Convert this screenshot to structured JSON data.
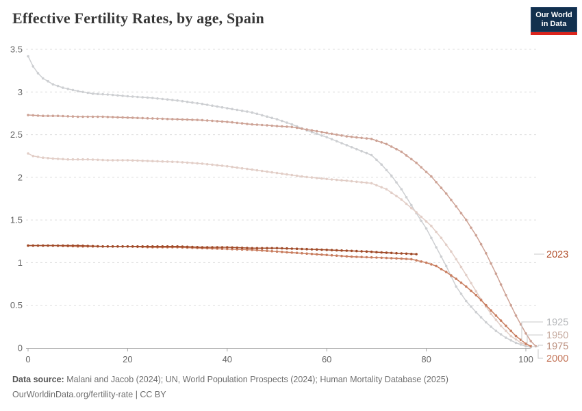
{
  "header": {
    "title": "Effective Fertility Rates, by age, Spain"
  },
  "logo": {
    "line1": "Our World",
    "line2": "in Data",
    "bg_color": "#12304e",
    "accent_color": "#dc241c"
  },
  "footer": {
    "source_label": "Data source:",
    "sources": "Malani and Jacob (2024); UN, World Population Prospects (2024); Human Mortality Database (2025)",
    "citation": "OurWorldinData.org/fertility-rate | CC BY"
  },
  "chart_data": {
    "type": "line",
    "title": "Effective Fertility Rates, by age, Spain",
    "xlabel": "",
    "ylabel": "",
    "xlim": [
      0,
      103
    ],
    "ylim": [
      0,
      3.5
    ],
    "x_ticks": [
      0,
      20,
      40,
      60,
      80,
      100
    ],
    "y_ticks": [
      0,
      0.5,
      1,
      1.5,
      2,
      2.5,
      3,
      3.5
    ],
    "grid": "horizontal-dashed",
    "legend_position": "end-of-line-labels",
    "axis_color": "#a5a5a5",
    "grid_color": "#dcdcdc",
    "tick_label_color": "#666666",
    "connector_color": "#c8c8c8",
    "series": [
      {
        "name": "1925",
        "color": "#cdcfd2",
        "label_color": "#b6b8bb",
        "points": [
          [
            0,
            3.42
          ],
          [
            1,
            3.3
          ],
          [
            2,
            3.22
          ],
          [
            3,
            3.16
          ],
          [
            5,
            3.09
          ],
          [
            7,
            3.05
          ],
          [
            10,
            3.01
          ],
          [
            13,
            2.98
          ],
          [
            16,
            2.97
          ],
          [
            20,
            2.95
          ],
          [
            25,
            2.93
          ],
          [
            30,
            2.9
          ],
          [
            35,
            2.86
          ],
          [
            40,
            2.81
          ],
          [
            45,
            2.76
          ],
          [
            50,
            2.68
          ],
          [
            53,
            2.62
          ],
          [
            56,
            2.55
          ],
          [
            60,
            2.47
          ],
          [
            63,
            2.4
          ],
          [
            66,
            2.33
          ],
          [
            69,
            2.26
          ],
          [
            71,
            2.15
          ],
          [
            73,
            2.02
          ],
          [
            75,
            1.86
          ],
          [
            78,
            1.58
          ],
          [
            80,
            1.4
          ],
          [
            82,
            1.18
          ],
          [
            84,
            0.96
          ],
          [
            86,
            0.72
          ],
          [
            88,
            0.55
          ],
          [
            90,
            0.42
          ],
          [
            92,
            0.3
          ],
          [
            94,
            0.2
          ],
          [
            96,
            0.12
          ],
          [
            98,
            0.06
          ],
          [
            100,
            0.02
          ],
          [
            101,
            0.01
          ]
        ]
      },
      {
        "name": "1950",
        "color": "#e2cec7",
        "label_color": "#c7aca1",
        "points": [
          [
            0,
            2.28
          ],
          [
            1,
            2.25
          ],
          [
            3,
            2.23
          ],
          [
            5,
            2.22
          ],
          [
            8,
            2.21
          ],
          [
            12,
            2.21
          ],
          [
            16,
            2.2
          ],
          [
            20,
            2.2
          ],
          [
            25,
            2.19
          ],
          [
            30,
            2.18
          ],
          [
            35,
            2.16
          ],
          [
            40,
            2.13
          ],
          [
            45,
            2.09
          ],
          [
            50,
            2.05
          ],
          [
            55,
            2.01
          ],
          [
            60,
            1.98
          ],
          [
            64,
            1.96
          ],
          [
            69,
            1.93
          ],
          [
            72,
            1.86
          ],
          [
            75,
            1.74
          ],
          [
            78,
            1.59
          ],
          [
            81,
            1.43
          ],
          [
            83,
            1.29
          ],
          [
            85,
            1.13
          ],
          [
            87,
            0.95
          ],
          [
            89,
            0.76
          ],
          [
            91,
            0.57
          ],
          [
            93,
            0.4
          ],
          [
            95,
            0.26
          ],
          [
            97,
            0.14
          ],
          [
            99,
            0.06
          ],
          [
            101,
            0.02
          ]
        ]
      },
      {
        "name": "1975",
        "color": "#cda295",
        "label_color": "#bb8f7e",
        "points": [
          [
            0,
            2.73
          ],
          [
            3,
            2.72
          ],
          [
            6,
            2.72
          ],
          [
            10,
            2.71
          ],
          [
            15,
            2.71
          ],
          [
            20,
            2.7
          ],
          [
            25,
            2.69
          ],
          [
            30,
            2.68
          ],
          [
            35,
            2.67
          ],
          [
            40,
            2.65
          ],
          [
            45,
            2.62
          ],
          [
            48,
            2.61
          ],
          [
            50,
            2.6
          ],
          [
            53,
            2.59
          ],
          [
            56,
            2.56
          ],
          [
            60,
            2.52
          ],
          [
            64,
            2.48
          ],
          [
            69,
            2.45
          ],
          [
            72,
            2.39
          ],
          [
            75,
            2.3
          ],
          [
            78,
            2.17
          ],
          [
            81,
            2.01
          ],
          [
            84,
            1.81
          ],
          [
            86,
            1.66
          ],
          [
            88,
            1.5
          ],
          [
            90,
            1.32
          ],
          [
            92,
            1.11
          ],
          [
            94,
            0.87
          ],
          [
            96,
            0.62
          ],
          [
            98,
            0.38
          ],
          [
            100,
            0.17
          ],
          [
            101,
            0.08
          ],
          [
            102,
            0.02
          ]
        ]
      },
      {
        "name": "2000",
        "color": "#c97e60",
        "label_color": "#c4765a",
        "points": [
          [
            0,
            1.2
          ],
          [
            5,
            1.2
          ],
          [
            10,
            1.19
          ],
          [
            15,
            1.19
          ],
          [
            20,
            1.19
          ],
          [
            25,
            1.18
          ],
          [
            30,
            1.18
          ],
          [
            35,
            1.17
          ],
          [
            40,
            1.16
          ],
          [
            45,
            1.15
          ],
          [
            50,
            1.13
          ],
          [
            55,
            1.11
          ],
          [
            60,
            1.09
          ],
          [
            65,
            1.07
          ],
          [
            70,
            1.06
          ],
          [
            74,
            1.05
          ],
          [
            77,
            1.04
          ],
          [
            80,
            1.0
          ],
          [
            82,
            0.96
          ],
          [
            84,
            0.89
          ],
          [
            86,
            0.81
          ],
          [
            88,
            0.72
          ],
          [
            90,
            0.62
          ],
          [
            92,
            0.5
          ],
          [
            94,
            0.38
          ],
          [
            96,
            0.26
          ],
          [
            98,
            0.14
          ],
          [
            100,
            0.05
          ],
          [
            101,
            0.02
          ]
        ]
      },
      {
        "name": "2023",
        "color": "#a04a28",
        "label_color": "#b04c28",
        "points": [
          [
            0,
            1.2
          ],
          [
            5,
            1.2
          ],
          [
            10,
            1.2
          ],
          [
            15,
            1.19
          ],
          [
            20,
            1.19
          ],
          [
            25,
            1.19
          ],
          [
            30,
            1.19
          ],
          [
            35,
            1.18
          ],
          [
            40,
            1.18
          ],
          [
            45,
            1.17
          ],
          [
            50,
            1.17
          ],
          [
            55,
            1.16
          ],
          [
            60,
            1.15
          ],
          [
            64,
            1.14
          ],
          [
            68,
            1.13
          ],
          [
            71,
            1.12
          ],
          [
            74,
            1.11
          ],
          [
            78,
            1.1
          ]
        ]
      }
    ]
  }
}
